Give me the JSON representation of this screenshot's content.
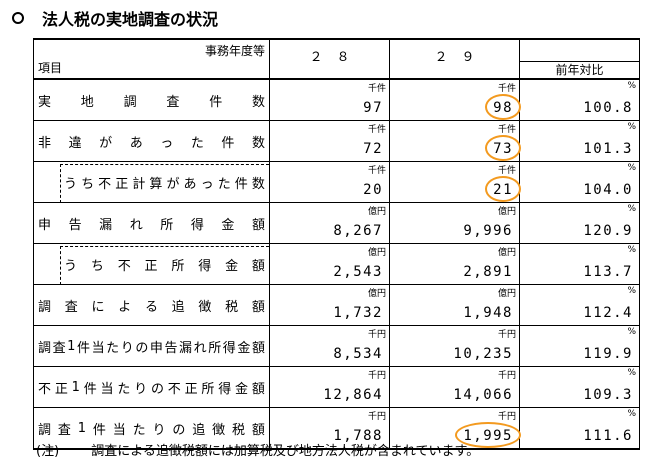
{
  "title": "法人税の実地調査の状況",
  "header": {
    "col_label_top": "事務年度等",
    "col_label_bottom": "項目",
    "year1": "２８",
    "year2": "２９",
    "ratio": "前年対比"
  },
  "rows": [
    {
      "label": "実地調査件数",
      "unit": "千件",
      "v1": "97",
      "v2": "98",
      "ratio_unit": "%",
      "ratio": "100.8"
    },
    {
      "label": "非違があった件数",
      "unit": "千件",
      "v1": "72",
      "v2": "73",
      "ratio_unit": "%",
      "ratio": "101.3"
    },
    {
      "label": "うち不正計算があった件数",
      "unit": "千件",
      "v1": "20",
      "v2": "21",
      "ratio_unit": "%",
      "ratio": "104.0"
    },
    {
      "label": "申告漏れ所得金額",
      "unit": "億円",
      "v1": "8,267",
      "v2": "9,996",
      "ratio_unit": "%",
      "ratio": "120.9"
    },
    {
      "label": "うち不正所得金額",
      "unit": "億円",
      "v1": "2,543",
      "v2": "2,891",
      "ratio_unit": "%",
      "ratio": "113.7"
    },
    {
      "label": "調査による追徴税額",
      "unit": "億円",
      "v1": "1,732",
      "v2": "1,948",
      "ratio_unit": "%",
      "ratio": "112.4"
    },
    {
      "label": "調査1件当たりの申告漏れ所得金額",
      "unit": "千円",
      "v1": "8,534",
      "v2": "10,235",
      "ratio_unit": "%",
      "ratio": "119.9"
    },
    {
      "label": "不正1件当たりの不正所得金額",
      "unit": "千円",
      "v1": "12,864",
      "v2": "14,066",
      "ratio_unit": "%",
      "ratio": "109.3"
    },
    {
      "label": "調査1件当たりの追徴税額",
      "unit": "千円",
      "v1": "1,788",
      "v2": "1,995",
      "ratio_unit": "%",
      "ratio": "111.6"
    }
  ],
  "note_tag": "(注)",
  "note": "調査による追徴税額には加算税及び地方法人税が含まれています。",
  "highlight_color": "#f39a1f"
}
